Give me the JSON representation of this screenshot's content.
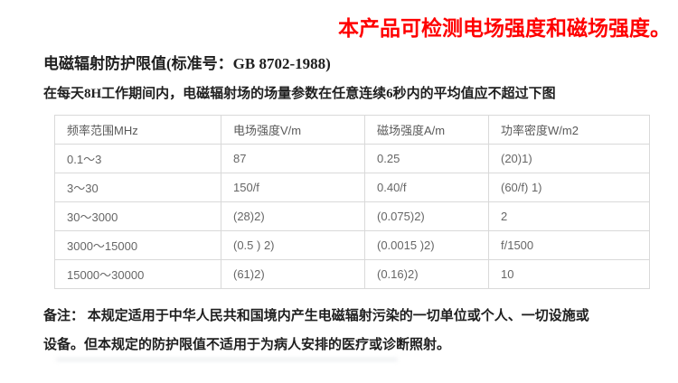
{
  "banner": {
    "text": "本产品可检测电场强度和磁场强度。",
    "color": "#ff0000"
  },
  "document": {
    "title": "电磁辐射防护限值(标准号：GB 8702-1988)",
    "subtitle": "在每天8H工作期间内，电磁辐射场的场量参数在任意连续6秒内的平均值应不超过下图",
    "note_line1": "备注： 本规定适用于中华人民共和国境内产生电磁辐射污染的一切单位或个人、一切设施或",
    "note_line2": "设备。但本规定的防护限值不适用于为病人安排的医疗或诊断照射。"
  },
  "table": {
    "headers": [
      "频率范围MHz",
      "电场强度V/m",
      "磁场强度A/m",
      "功率密度W/m2"
    ],
    "rows": [
      [
        "0.1～3",
        "87",
        "0.25",
        "(20)1)"
      ],
      [
        "3～30",
        "150/f",
        "0.40/f",
        "(60/f) 1)"
      ],
      [
        "30～3000",
        "(28)2)",
        "(0.075)2)",
        "2"
      ],
      [
        "3000～15000",
        "(0.5 ) 2)",
        "(0.0015 )2)",
        "f/1500"
      ],
      [
        "15000～30000",
        "(61)2)",
        "(0.16)2)",
        "10"
      ]
    ],
    "border_color": "#d9d9d9",
    "text_color": "#666666"
  }
}
